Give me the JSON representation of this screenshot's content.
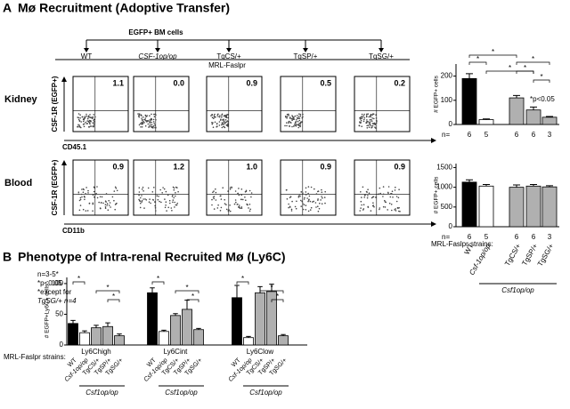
{
  "panel_a": {
    "label": "A",
    "title": "Mø Recruitment (Adoptive Transfer)",
    "source": "EGFP+ BM cells",
    "groups": [
      "WT",
      "CSF-1op/op",
      "TgCS/+",
      "TgSP/+",
      "TgSG/+"
    ],
    "host": "MRL-Faslpr",
    "rows": [
      {
        "name": "Kidney",
        "y_axis": "CSF-1R (EGFP+)",
        "x_axis": "CD45.1",
        "percents": [
          "1.1",
          "0.0",
          "0.9",
          "0.5",
          "0.2"
        ]
      },
      {
        "name": "Blood",
        "y_axis": "CSF-1R (EGFP+)",
        "x_axis": "CD11b",
        "percents": [
          "0.9",
          "1.2",
          "1.0",
          "0.9",
          "0.9"
        ]
      }
    ]
  },
  "panel_b": {
    "label": "B",
    "title": "Phenotype of Intra-renal Recruited Mø (Ly6C)"
  },
  "chart_data": [
    {
      "type": "bar",
      "ylabel": "# EGFP+ cells",
      "values": [
        190,
        20,
        110,
        60,
        30
      ],
      "errors": [
        20,
        3,
        10,
        12,
        3
      ],
      "colors": [
        "#000000",
        "#ffffff",
        "#b0b0b0",
        "#b0b0b0",
        "#b0b0b0"
      ],
      "ylim": [
        0,
        250
      ],
      "yticks": [
        0,
        100,
        200
      ],
      "n_label": "n=",
      "n": [
        6,
        5,
        6,
        6,
        3
      ],
      "annotation": "*p<0.05",
      "significance_label": "*"
    },
    {
      "type": "bar",
      "ylabel": "# EGFP+ cells",
      "categories": [
        "WT",
        "Csf-1op/op",
        "TgCS/+",
        "TgSP/+",
        "TgSG/+"
      ],
      "values": [
        1130,
        1030,
        1000,
        1030,
        1010
      ],
      "errors": [
        60,
        40,
        60,
        40,
        30
      ],
      "colors": [
        "#000000",
        "#ffffff",
        "#b0b0b0",
        "#b0b0b0",
        "#b0b0b0"
      ],
      "ylim": [
        0,
        1600
      ],
      "yticks": [
        0,
        500,
        1000,
        1500
      ],
      "n_label": "n=",
      "n": [
        6,
        5,
        6,
        6,
        3
      ],
      "strains_label": "MRL-Faslpr strains:",
      "genotype": "Csf1op/op"
    },
    {
      "type": "grouped-bar",
      "ylabel": "# EGFP+Ly6C+ cells",
      "categories": [
        "Ly6Chigh",
        "Ly6Cint",
        "Ly6Clow"
      ],
      "series": [
        {
          "name": "WT",
          "color": "#000000",
          "values": [
            35,
            85,
            77
          ],
          "errors": [
            5,
            8,
            20
          ]
        },
        {
          "name": "Csf-1op/op",
          "color": "#ffffff",
          "values": [
            20,
            22,
            12
          ],
          "errors": [
            3,
            2,
            2
          ]
        },
        {
          "name": "TgCS/+",
          "color": "#b0b0b0",
          "values": [
            28,
            48,
            85
          ],
          "errors": [
            4,
            3,
            10
          ]
        },
        {
          "name": "TgSP/+",
          "color": "#b0b0b0",
          "values": [
            30,
            58,
            87
          ],
          "errors": [
            6,
            15,
            12
          ]
        },
        {
          "name": "TgSG/+",
          "color": "#b0b0b0",
          "values": [
            15,
            25,
            15
          ],
          "errors": [
            3,
            2,
            2
          ]
        }
      ],
      "ylim": [
        0,
        110
      ],
      "yticks": [
        0,
        50,
        100
      ],
      "notes": [
        "n=3-5*",
        "*p<0.05",
        "*except for",
        "TgSG/+ n=4"
      ],
      "strains_label": "MRL-Faslpr strains:",
      "genotype": "Csf1op/op",
      "significance_label": "*"
    }
  ]
}
